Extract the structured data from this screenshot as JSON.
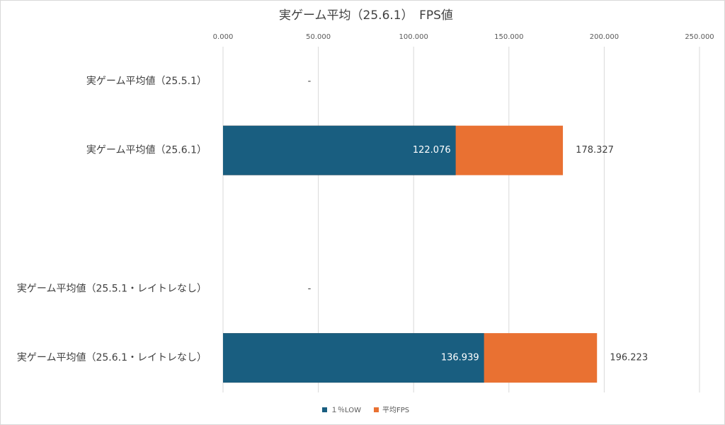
{
  "chart_data": {
    "type": "bar",
    "orientation": "horizontal",
    "title": "実ゲーム平均（25.6.1）　FPS値",
    "categories": [
      "実ゲーム平均値（25.5.1）",
      "実ゲーム平均値（25.6.1）",
      null,
      "実ゲーム平均値（25.5.1・レイトレなし）",
      "実ゲーム平均値（25.6.1・レイトレなし）"
    ],
    "series": [
      {
        "name": "１％LOW",
        "color": "#195e80",
        "values": [
          null,
          122.076,
          null,
          null,
          136.939
        ]
      },
      {
        "name": "平均FPS",
        "color": "#e97132",
        "values": [
          null,
          178.327,
          null,
          null,
          196.223
        ],
        "value_labels": [
          "-",
          "178.327",
          null,
          "-",
          "196.223"
        ]
      }
    ],
    "xlim": [
      0,
      250
    ],
    "xticks": [
      {
        "value": 0,
        "label": "0.000"
      },
      {
        "value": 50,
        "label": "50.000"
      },
      {
        "value": 100,
        "label": "100.000"
      },
      {
        "value": 150,
        "label": "150.000"
      },
      {
        "value": 200,
        "label": "200.000"
      },
      {
        "value": 250,
        "label": "250.000"
      }
    ],
    "grid": true,
    "legend": "bottom"
  }
}
